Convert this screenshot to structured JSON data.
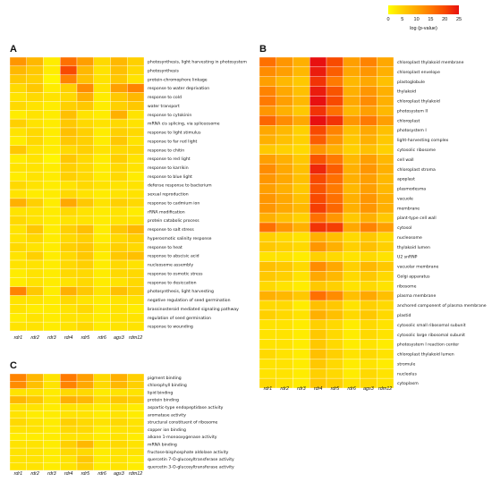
{
  "legend": {
    "title": "log (p-value)",
    "ticks": [
      "0",
      "5",
      "10",
      "15",
      "20",
      "25"
    ],
    "colors": [
      "#ffff00",
      "#ffd000",
      "#ffa800",
      "#ff7a00",
      "#f84a00",
      "#e81010"
    ]
  },
  "chart_data": [
    {
      "type": "heatmap",
      "panel_label": "A",
      "columns": [
        "rdr1",
        "rdr2",
        "rdr3",
        "rdr4",
        "rdr5",
        "rdr6",
        "ags3",
        "rdm12"
      ],
      "rows": [
        "photosynthesis, light harvesting in photosystem",
        "photosynthesis",
        "protein-chromophore linkage",
        "response to water deprivation",
        "response to cold",
        "water transport",
        "response to cytokinin",
        "mRNA cis splicing, via spliceosome",
        "response to light stimulus",
        "response to far red light",
        "response to chitin",
        "response to red light",
        "response to karrikin",
        "response to blue light",
        "defense response to bacterium",
        "sexual reproduction",
        "response to cadmium ion",
        "rRNA modification",
        "protein catabolic process",
        "response to salt stress",
        "hyperosmotic salinity response",
        "response to heat",
        "response to abscisic acid",
        "nucleosome assembly",
        "response to osmotic stress",
        "response to desiccation",
        "photosynthesis, light harvesting",
        "negative regulation of seed germination",
        "brassinosteroid mediated signaling pathway",
        "regulation of seed germination",
        "response to wounding"
      ],
      "values": [
        [
          12,
          8,
          2,
          16,
          11,
          4,
          8,
          5
        ],
        [
          8,
          6,
          2,
          20,
          8,
          3,
          7,
          4
        ],
        [
          6,
          5,
          1,
          14,
          7,
          3,
          6,
          3
        ],
        [
          4,
          6,
          2,
          5,
          13,
          3,
          11,
          14
        ],
        [
          3,
          4,
          3,
          4,
          9,
          2,
          6,
          8
        ],
        [
          4,
          3,
          2,
          5,
          6,
          2,
          5,
          6
        ],
        [
          2,
          3,
          2,
          7,
          3,
          2,
          9,
          3
        ],
        [
          5,
          3,
          2,
          6,
          4,
          3,
          4,
          3
        ],
        [
          3,
          4,
          2,
          7,
          5,
          2,
          5,
          4
        ],
        [
          2,
          4,
          2,
          6,
          5,
          2,
          6,
          3
        ],
        [
          6,
          3,
          2,
          4,
          5,
          3,
          4,
          4
        ],
        [
          2,
          3,
          1,
          6,
          4,
          2,
          5,
          3
        ],
        [
          3,
          3,
          2,
          5,
          4,
          2,
          4,
          3
        ],
        [
          2,
          3,
          2,
          5,
          4,
          2,
          4,
          2
        ],
        [
          4,
          3,
          2,
          3,
          4,
          3,
          3,
          3
        ],
        [
          3,
          2,
          2,
          4,
          3,
          2,
          3,
          3
        ],
        [
          9,
          5,
          2,
          10,
          6,
          3,
          5,
          4
        ],
        [
          3,
          3,
          2,
          4,
          3,
          2,
          3,
          2
        ],
        [
          4,
          3,
          2,
          3,
          3,
          2,
          3,
          3
        ],
        [
          3,
          6,
          2,
          5,
          7,
          2,
          6,
          8
        ],
        [
          3,
          4,
          2,
          4,
          5,
          2,
          4,
          5
        ],
        [
          4,
          3,
          2,
          5,
          6,
          3,
          5,
          4
        ],
        [
          3,
          5,
          2,
          4,
          6,
          2,
          6,
          7
        ],
        [
          3,
          3,
          2,
          4,
          5,
          2,
          4,
          3
        ],
        [
          2,
          3,
          2,
          4,
          4,
          2,
          4,
          4
        ],
        [
          2,
          3,
          2,
          3,
          4,
          2,
          3,
          4
        ],
        [
          14,
          6,
          2,
          9,
          6,
          3,
          7,
          5
        ],
        [
          3,
          3,
          2,
          4,
          3,
          2,
          3,
          3
        ],
        [
          3,
          2,
          2,
          3,
          4,
          2,
          3,
          2
        ],
        [
          2,
          3,
          2,
          3,
          3,
          2,
          3,
          3
        ],
        [
          3,
          3,
          2,
          3,
          4,
          2,
          3,
          3
        ]
      ]
    },
    {
      "type": "heatmap",
      "panel_label": "B",
      "columns": [
        "rdr1",
        "rdr2",
        "rdr3",
        "rdr4",
        "rdr5",
        "rdr6",
        "ags3",
        "rdm12"
      ],
      "rows": [
        "chloroplast thylakoid membrane",
        "chloroplast envelope",
        "plastoglobule",
        "thylakoid",
        "chloroplast thylakoid",
        "photosystem II",
        "chloroplast",
        "photosystem I",
        "light-harvesting complex",
        "cytosolic ribosome",
        "cell wall",
        "chloroplast stroma",
        "apoplast",
        "plasmodesma",
        "vacuole",
        "membrane",
        "plant-type cell wall",
        "cytosol",
        "nucleosome",
        "thylakoid lumen",
        "U2 snRNP",
        "vacuolar membrane",
        "Golgi apparatus",
        "ribosome",
        "plasma membrane",
        "anchored component of plasma membrane",
        "plastid",
        "cytosolic small ribosomal subunit",
        "cytosolic large ribosomal subunit",
        "photosystem I reaction center",
        "chloroplast thylakoid lumen",
        "stromule",
        "nucleolus",
        "cytoplasm"
      ],
      "values": [
        [
          16,
          12,
          9,
          25,
          20,
          11,
          14,
          10
        ],
        [
          13,
          11,
          8,
          24,
          18,
          10,
          12,
          9
        ],
        [
          11,
          8,
          6,
          22,
          15,
          8,
          10,
          7
        ],
        [
          14,
          10,
          7,
          24,
          19,
          9,
          12,
          9
        ],
        [
          15,
          11,
          8,
          25,
          20,
          10,
          13,
          9
        ],
        [
          12,
          9,
          6,
          22,
          16,
          8,
          11,
          8
        ],
        [
          17,
          13,
          10,
          25,
          22,
          12,
          15,
          11
        ],
        [
          10,
          8,
          5,
          20,
          14,
          7,
          10,
          7
        ],
        [
          9,
          7,
          5,
          18,
          12,
          6,
          9,
          6
        ],
        [
          6,
          5,
          4,
          12,
          9,
          5,
          7,
          5
        ],
        [
          11,
          9,
          6,
          19,
          15,
          8,
          11,
          8
        ],
        [
          13,
          10,
          7,
          23,
          18,
          9,
          12,
          9
        ],
        [
          12,
          10,
          7,
          20,
          16,
          9,
          11,
          8
        ],
        [
          11,
          9,
          6,
          19,
          15,
          8,
          11,
          8
        ],
        [
          12,
          10,
          7,
          20,
          16,
          9,
          12,
          9
        ],
        [
          12,
          10,
          8,
          21,
          17,
          9,
          12,
          9
        ],
        [
          9,
          7,
          5,
          16,
          12,
          6,
          9,
          6
        ],
        [
          16,
          12,
          9,
          22,
          21,
          10,
          14,
          11
        ],
        [
          5,
          4,
          3,
          9,
          7,
          4,
          6,
          4
        ],
        [
          6,
          5,
          4,
          12,
          9,
          5,
          7,
          5
        ],
        [
          3,
          3,
          2,
          5,
          4,
          3,
          4,
          3
        ],
        [
          7,
          6,
          4,
          13,
          10,
          5,
          8,
          6
        ],
        [
          6,
          5,
          3,
          10,
          8,
          4,
          6,
          4
        ],
        [
          4,
          3,
          2,
          6,
          5,
          3,
          4,
          3
        ],
        [
          9,
          8,
          6,
          16,
          13,
          7,
          10,
          7
        ],
        [
          4,
          4,
          2,
          7,
          6,
          3,
          5,
          4
        ],
        [
          5,
          4,
          3,
          9,
          7,
          4,
          6,
          4
        ],
        [
          3,
          3,
          2,
          5,
          4,
          2,
          4,
          3
        ],
        [
          3,
          3,
          2,
          6,
          4,
          2,
          4,
          3
        ],
        [
          3,
          3,
          2,
          6,
          4,
          2,
          3,
          2
        ],
        [
          4,
          3,
          2,
          7,
          5,
          3,
          4,
          3
        ],
        [
          3,
          3,
          2,
          6,
          4,
          2,
          3,
          2
        ],
        [
          3,
          3,
          2,
          5,
          4,
          2,
          4,
          3
        ],
        [
          4,
          3,
          2,
          6,
          5,
          3,
          4,
          3
        ]
      ]
    },
    {
      "type": "heatmap",
      "panel_label": "C",
      "columns": [
        "rdr1",
        "rdr2",
        "rdr3",
        "rdr4",
        "rdr5",
        "rdr6",
        "ags3",
        "rdm12"
      ],
      "rows": [
        "pigment binding",
        "chlorophyll binding",
        "lipid binding",
        "protein binding",
        "aspartic-type endopeptidase activity",
        "aromatase activity",
        "structural constituent of ribosome",
        "copper ion binding",
        "alkane 1-monooxygenase activity",
        "mRNA binding",
        "fructose-bisphosphate aldolase activity",
        "quercetin 7-O-glucosyltransferase activity",
        "quercetin 3-O-glucosyltransferase activity"
      ],
      "values": [
        [
          14,
          8,
          3,
          15,
          11,
          4,
          9,
          5
        ],
        [
          13,
          7,
          3,
          14,
          10,
          4,
          8,
          5
        ],
        [
          3,
          3,
          2,
          4,
          4,
          2,
          3,
          3
        ],
        [
          8,
          6,
          3,
          9,
          8,
          4,
          6,
          5
        ],
        [
          3,
          3,
          2,
          3,
          3,
          2,
          3,
          2
        ],
        [
          3,
          2,
          2,
          3,
          3,
          2,
          3,
          2
        ],
        [
          4,
          3,
          2,
          5,
          4,
          3,
          4,
          3
        ],
        [
          3,
          3,
          2,
          4,
          4,
          2,
          3,
          3
        ],
        [
          2,
          2,
          2,
          3,
          3,
          2,
          3,
          2
        ],
        [
          3,
          3,
          2,
          5,
          8,
          3,
          4,
          3
        ],
        [
          3,
          3,
          2,
          4,
          4,
          2,
          3,
          3
        ],
        [
          3,
          3,
          2,
          3,
          6,
          2,
          3,
          2
        ],
        [
          3,
          3,
          2,
          3,
          5,
          2,
          3,
          2
        ]
      ]
    }
  ]
}
